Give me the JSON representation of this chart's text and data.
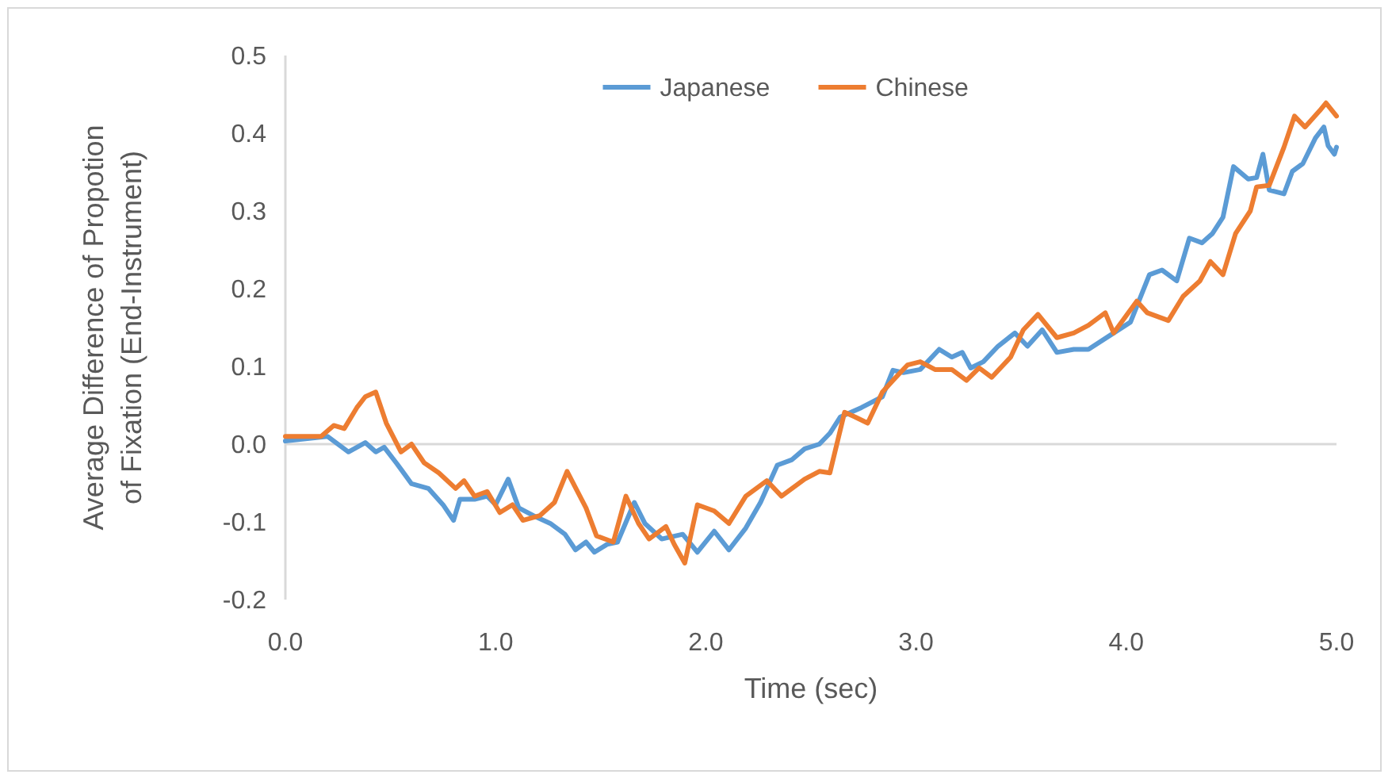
{
  "chart_data": {
    "type": "line",
    "xlabel": "Time (sec)",
    "ylabel": "Average Difference of Propotion of Fixation (End-Instrument)",
    "legend": "top",
    "marker": "none",
    "line_style": "solid",
    "grid": false,
    "xlim": [
      0,
      5
    ],
    "xticks": [
      {
        "value": 0,
        "label": "0.0"
      },
      {
        "value": 1,
        "label": "1.0"
      },
      {
        "value": 2,
        "label": "2.0"
      },
      {
        "value": 3,
        "label": "3.0"
      },
      {
        "value": 4,
        "label": "4.0"
      },
      {
        "value": 5,
        "label": "5.0"
      }
    ],
    "ylim": [
      -0.2,
      0.5
    ],
    "yticks": [
      -0.2,
      -0.1,
      {
        "value": 0,
        "label": "0.0"
      },
      0.1,
      0.2,
      0.3,
      0.4,
      0.5
    ],
    "ref_lines": [
      {
        "axis": "y",
        "value": 0,
        "color": "#d9d9d9"
      }
    ],
    "series": [
      {
        "name": "Japanese",
        "color": "#5b9bd5",
        "x": [
          0,
          0.2,
          0.3,
          0.38,
          0.43,
          0.47,
          0.53,
          0.6,
          0.68,
          0.75,
          0.8,
          0.83,
          0.9,
          0.96,
          1.0,
          1.06,
          1.11,
          1.18,
          1.26,
          1.33,
          1.38,
          1.43,
          1.47,
          1.53,
          1.58,
          1.66,
          1.71,
          1.79,
          1.89,
          1.96,
          2.04,
          2.11,
          2.19,
          2.26,
          2.34,
          2.41,
          2.47,
          2.54,
          2.59,
          2.64,
          2.74,
          2.84,
          2.89,
          2.94,
          3.02,
          3.11,
          3.17,
          3.22,
          3.26,
          3.32,
          3.39,
          3.47,
          3.53,
          3.6,
          3.67,
          3.75,
          3.82,
          3.94,
          4.02,
          4.11,
          4.17,
          4.24,
          4.3,
          4.36,
          4.41,
          4.46,
          4.51,
          4.58,
          4.62,
          4.65,
          4.68,
          4.75,
          4.79,
          4.84,
          4.9,
          4.94,
          4.96,
          4.99,
          5.0
        ],
        "values": [
          0.004,
          0.01,
          -0.01,
          0.002,
          -0.01,
          -0.004,
          -0.025,
          -0.051,
          -0.057,
          -0.078,
          -0.098,
          -0.071,
          -0.071,
          -0.067,
          -0.078,
          -0.045,
          -0.082,
          -0.092,
          -0.102,
          -0.116,
          -0.136,
          -0.126,
          -0.139,
          -0.129,
          -0.126,
          -0.075,
          -0.102,
          -0.122,
          -0.116,
          -0.139,
          -0.112,
          -0.136,
          -0.108,
          -0.075,
          -0.027,
          -0.02,
          -0.006,
          0,
          0.014,
          0.035,
          0.047,
          0.061,
          0.095,
          0.092,
          0.096,
          0.122,
          0.112,
          0.118,
          0.098,
          0.106,
          0.126,
          0.143,
          0.126,
          0.147,
          0.118,
          0.122,
          0.122,
          0.143,
          0.157,
          0.218,
          0.224,
          0.21,
          0.265,
          0.259,
          0.271,
          0.292,
          0.357,
          0.341,
          0.343,
          0.373,
          0.327,
          0.322,
          0.351,
          0.361,
          0.394,
          0.408,
          0.384,
          0.373,
          0.382
        ]
      },
      {
        "name": "Chinese",
        "color": "#ed7d31",
        "x": [
          0,
          0.17,
          0.23,
          0.28,
          0.34,
          0.38,
          0.43,
          0.48,
          0.55,
          0.6,
          0.66,
          0.73,
          0.81,
          0.85,
          0.9,
          0.96,
          1.02,
          1.08,
          1.13,
          1.21,
          1.28,
          1.34,
          1.43,
          1.48,
          1.56,
          1.62,
          1.68,
          1.73,
          1.81,
          1.85,
          1.9,
          1.96,
          2.04,
          2.11,
          2.19,
          2.29,
          2.36,
          2.47,
          2.54,
          2.59,
          2.66,
          2.71,
          2.77,
          2.84,
          2.89,
          2.96,
          3.02,
          3.09,
          3.17,
          3.24,
          3.3,
          3.36,
          3.45,
          3.51,
          3.58,
          3.67,
          3.75,
          3.82,
          3.9,
          3.94,
          4.05,
          4.1,
          4.2,
          4.27,
          4.35,
          4.4,
          4.46,
          4.52,
          4.59,
          4.62,
          4.68,
          4.75,
          4.8,
          4.85,
          4.92,
          4.95,
          5.0
        ],
        "values": [
          0.01,
          0.01,
          0.024,
          0.02,
          0.047,
          0.061,
          0.067,
          0.027,
          -0.01,
          0,
          -0.024,
          -0.037,
          -0.057,
          -0.047,
          -0.067,
          -0.061,
          -0.088,
          -0.078,
          -0.098,
          -0.092,
          -0.075,
          -0.035,
          -0.082,
          -0.118,
          -0.126,
          -0.067,
          -0.102,
          -0.122,
          -0.106,
          -0.129,
          -0.153,
          -0.078,
          -0.086,
          -0.102,
          -0.067,
          -0.047,
          -0.067,
          -0.045,
          -0.035,
          -0.037,
          0.041,
          0.035,
          0.027,
          0.067,
          0.082,
          0.102,
          0.106,
          0.096,
          0.096,
          0.082,
          0.098,
          0.086,
          0.112,
          0.147,
          0.167,
          0.137,
          0.143,
          0.153,
          0.169,
          0.143,
          0.184,
          0.169,
          0.159,
          0.19,
          0.21,
          0.235,
          0.218,
          0.271,
          0.3,
          0.331,
          0.333,
          0.382,
          0.422,
          0.408,
          0.429,
          0.439,
          0.422
        ]
      }
    ]
  }
}
